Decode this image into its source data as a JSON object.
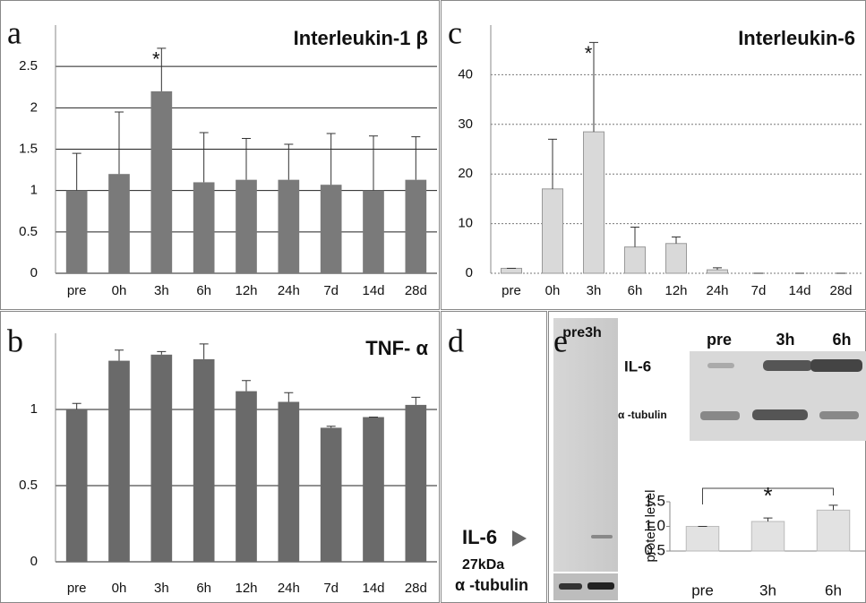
{
  "chart_data": [
    {
      "type": "bar",
      "panel_label": "a",
      "title": "Interleukin-1 β",
      "categories": [
        "pre",
        "0h",
        "3h",
        "6h",
        "12h",
        "24h",
        "7d",
        "14d",
        "28d"
      ],
      "values": [
        1,
        1.2,
        2.2,
        1.1,
        1.13,
        1.13,
        1.07,
        1,
        1.13
      ],
      "errors": [
        0.45,
        0.75,
        0.52,
        0.6,
        0.5,
        0.43,
        0.62,
        0.66,
        0.52
      ],
      "annotations": [
        null,
        null,
        "*",
        null,
        null,
        null,
        null,
        null,
        null
      ],
      "color": "#7a7a7a",
      "ylim": [
        0,
        3
      ],
      "yticks": [
        0,
        0.5,
        1,
        1.5,
        2,
        2.5
      ],
      "grid": true
    },
    {
      "type": "bar",
      "panel_label": "b",
      "title": "TNF- α",
      "categories": [
        "pre",
        "0h",
        "3h",
        "6h",
        "12h",
        "24h",
        "7d",
        "14d",
        "28d"
      ],
      "values": [
        1,
        1.32,
        1.36,
        1.33,
        1.12,
        1.05,
        0.88,
        0.95,
        1.03
      ],
      "errors": [
        0.04,
        0.07,
        0.02,
        0.1,
        0.07,
        0.06,
        0.01,
        0,
        0.05
      ],
      "color": "#6a6a6a",
      "ylim": [
        0,
        1.5
      ],
      "yticks": [
        0,
        0.5,
        1
      ],
      "grid": true
    },
    {
      "type": "bar",
      "panel_label": "c",
      "title": "Interleukin-6",
      "categories": [
        "pre",
        "0h",
        "3h",
        "6h",
        "12h",
        "24h",
        "7d",
        "14d",
        "28d"
      ],
      "values": [
        1,
        17,
        28.5,
        5.3,
        6,
        0.7,
        0,
        0,
        0
      ],
      "errors": [
        0,
        10,
        18,
        4,
        1.3,
        0.4,
        0,
        0,
        0
      ],
      "annotations": [
        null,
        null,
        "*",
        null,
        null,
        null,
        null,
        null,
        null
      ],
      "color": "#d9d9d9",
      "ylim": [
        0,
        50
      ],
      "yticks": [
        0,
        10,
        20,
        30,
        40
      ],
      "grid": true
    },
    {
      "type": "bar",
      "panel_label": "e",
      "y_label": "protein level",
      "categories": [
        "pre",
        "3h",
        "6h"
      ],
      "values": [
        1,
        1.1,
        1.33
      ],
      "errors": [
        0,
        0.07,
        0.1
      ],
      "significance": "*",
      "color": "#e2e2e2",
      "ylim": [
        0.5,
        1.5
      ],
      "yticks": [
        0.5,
        {
          "value": 1,
          "label": "1.0"
        },
        1.5
      ],
      "grid": false
    }
  ],
  "blot_d": {
    "panel_label": "d",
    "lanes": "pre3h",
    "band_label": "IL-6",
    "band_size": "27kDa",
    "loading_label": "α -tubulin"
  },
  "blot_e": {
    "lanes": [
      "pre",
      "3h",
      "6h"
    ],
    "rows": [
      "IL-6",
      "α -tubulin"
    ]
  }
}
